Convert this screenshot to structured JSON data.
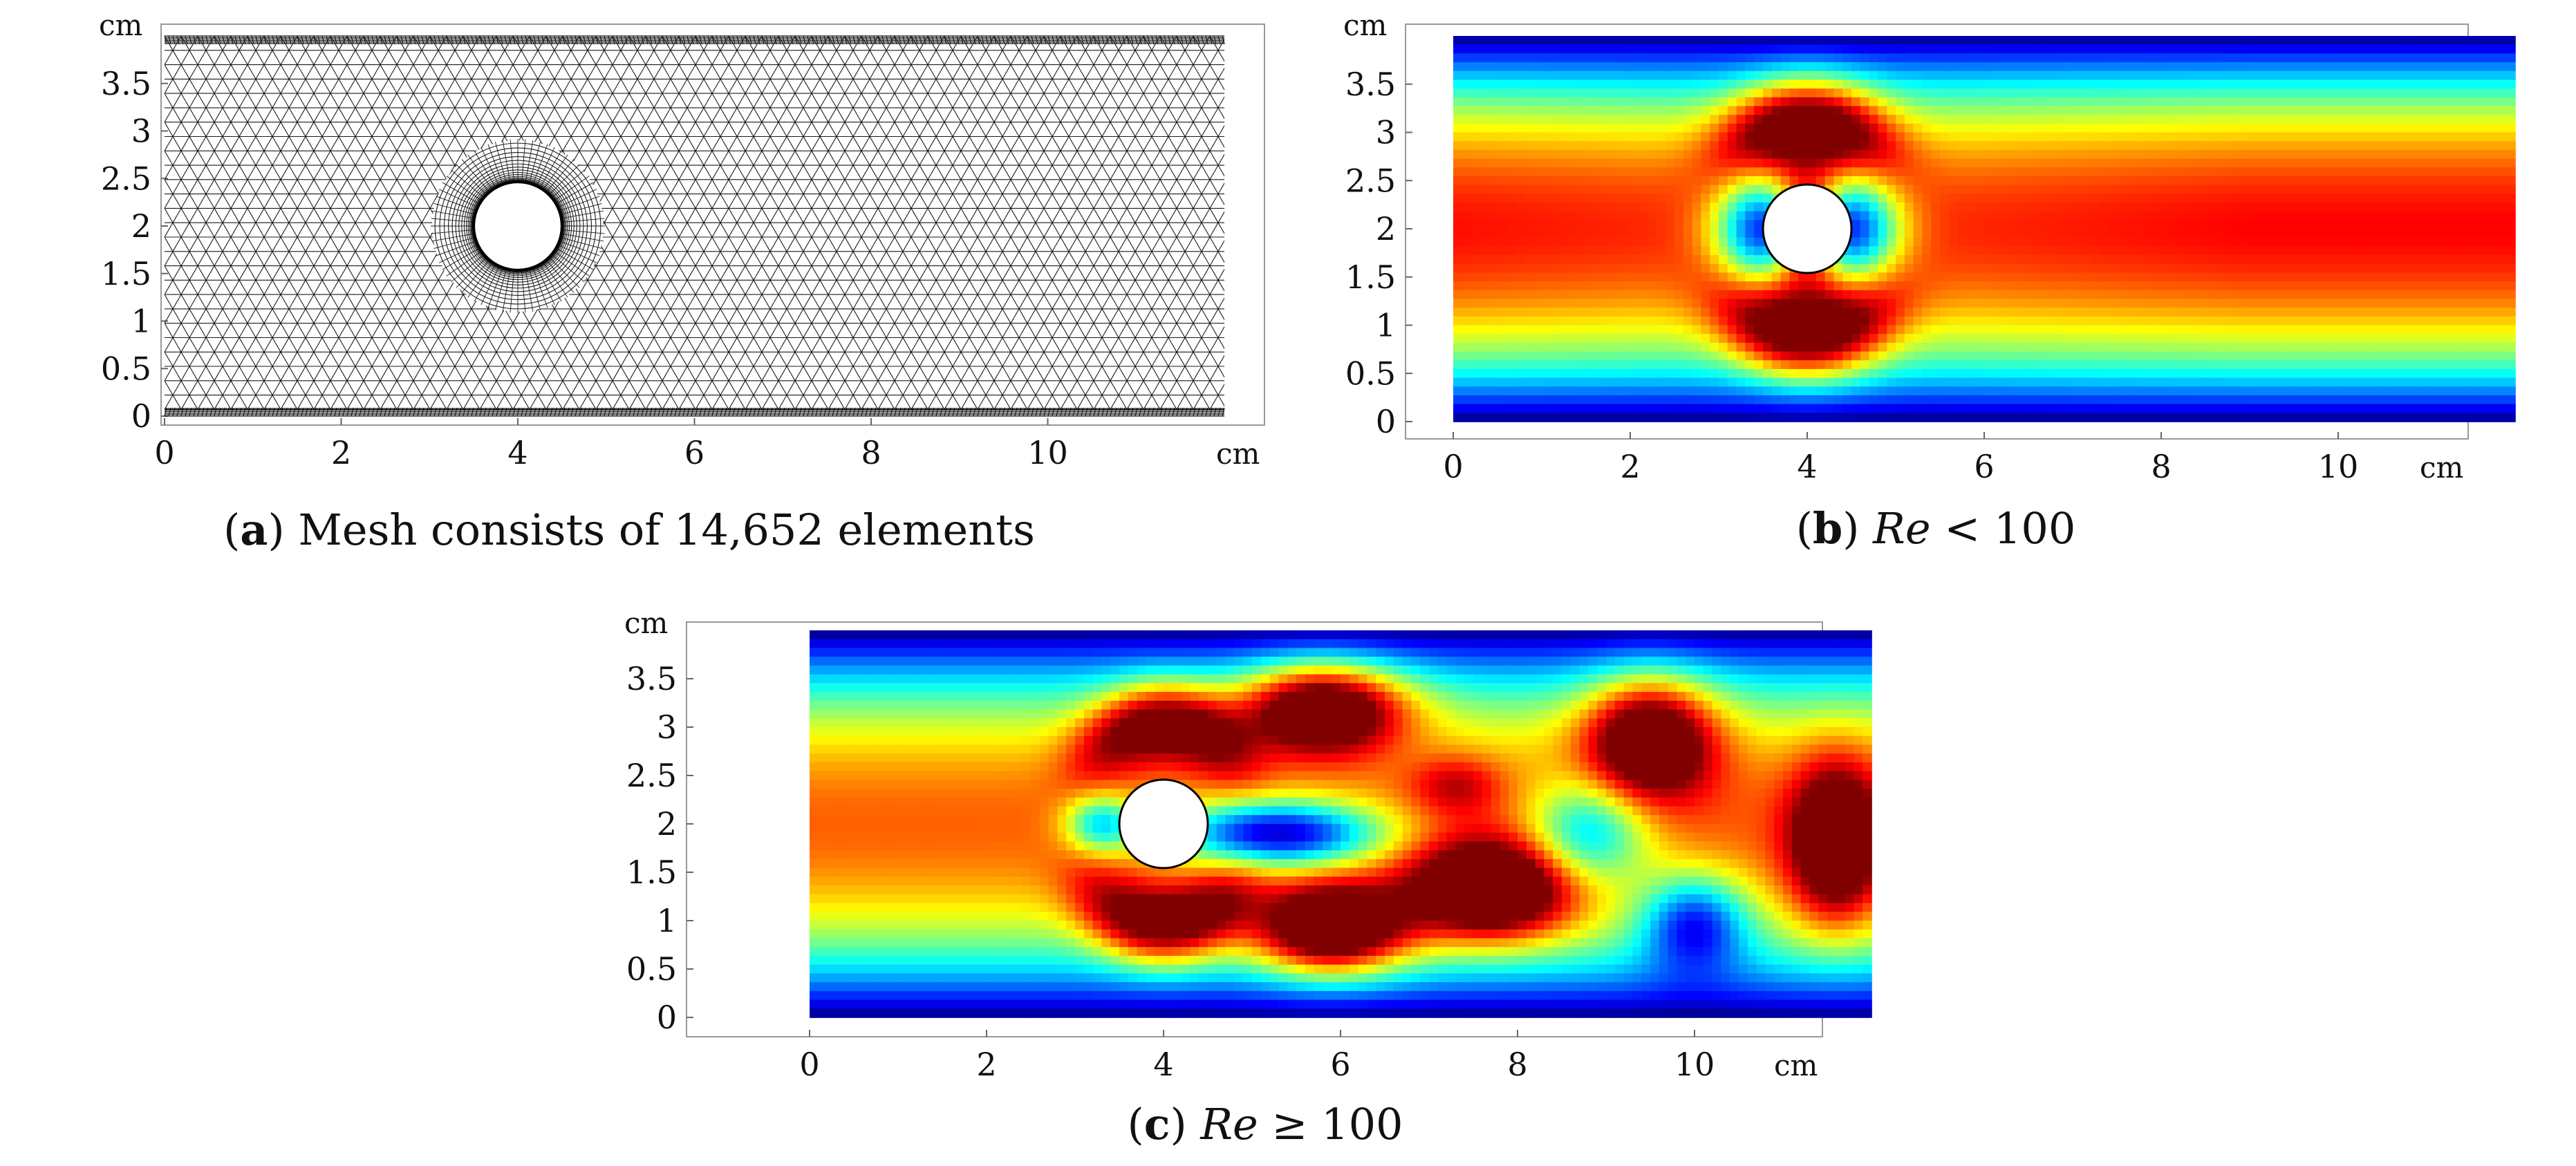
{
  "figure": {
    "panels": [
      {
        "id": "a",
        "kind": "mesh",
        "unit": "cm",
        "x_range": [
          0,
          12
        ],
        "y_range": [
          0,
          4
        ],
        "x_ticks": [
          "0",
          "2",
          "4",
          "6",
          "8",
          "10"
        ],
        "y_ticks": [
          "0",
          "0.5",
          "1",
          "1.5",
          "2",
          "2.5",
          "3",
          "3.5"
        ],
        "x_tick_values": [
          0,
          2,
          4,
          6,
          8,
          10
        ],
        "y_tick_values": [
          0,
          0.5,
          1,
          1.5,
          2,
          2.5,
          3,
          3.5
        ],
        "cylinder": {
          "cx": 4,
          "cy": 2,
          "r": 0.5
        },
        "caption": {
          "label": "a",
          "text": "Mesh consists of 14,652 elements"
        }
      },
      {
        "id": "b",
        "kind": "velocity-field",
        "flow_regime": "steady",
        "unit": "cm",
        "x_range": [
          0,
          12
        ],
        "y_range": [
          0,
          4
        ],
        "x_ticks": [
          "0",
          "2",
          "4",
          "6",
          "8",
          "10"
        ],
        "y_ticks": [
          "0",
          "0.5",
          "1",
          "1.5",
          "2",
          "2.5",
          "3",
          "3.5"
        ],
        "x_tick_values": [
          0,
          2,
          4,
          6,
          8,
          10
        ],
        "y_tick_values": [
          0,
          0.5,
          1,
          1.5,
          2,
          2.5,
          3,
          3.5
        ],
        "cylinder": {
          "cx": 4,
          "cy": 2,
          "r": 0.5
        },
        "caption": {
          "label": "b",
          "math_var": "Re",
          "relation": "<",
          "value": "100"
        }
      },
      {
        "id": "c",
        "kind": "velocity-field",
        "flow_regime": "vortex-shedding",
        "unit": "cm",
        "x_range": [
          0,
          12
        ],
        "y_range": [
          0,
          4
        ],
        "x_ticks": [
          "0",
          "2",
          "4",
          "6",
          "8",
          "10"
        ],
        "y_ticks": [
          "0",
          "0.5",
          "1",
          "1.5",
          "2",
          "2.5",
          "3",
          "3.5"
        ],
        "x_tick_values": [
          0,
          2,
          4,
          6,
          8,
          10
        ],
        "y_tick_values": [
          0,
          0.5,
          1,
          1.5,
          2,
          2.5,
          3,
          3.5
        ],
        "cylinder": {
          "cx": 4,
          "cy": 2,
          "r": 0.5
        },
        "caption": {
          "label": "c",
          "math_var": "Re",
          "relation": "≥",
          "value": "100"
        }
      }
    ],
    "colormap": "jet",
    "colors": {
      "mesh_line": "#1a1a1a",
      "frame": "#999999",
      "cylinder": "#ffffff"
    }
  }
}
